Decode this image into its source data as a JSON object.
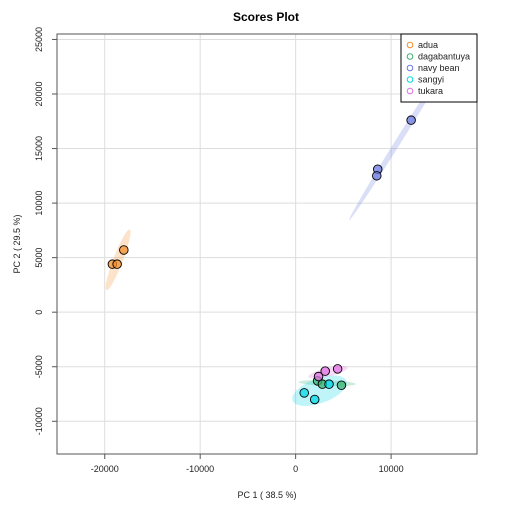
{
  "chart_data": {
    "type": "scatter",
    "title": "Scores Plot",
    "xlabel": "PC 1 ( 38.5 %)",
    "ylabel": "PC 2 ( 29.5 %)",
    "xlim": [
      -25000,
      19000
    ],
    "ylim": [
      -13000,
      25500
    ],
    "xticks": [
      -20000,
      -10000,
      0,
      10000
    ],
    "xtick_labels": [
      "-20000",
      "-10000",
      "0",
      "10000"
    ],
    "yticks": [
      -10000,
      -5000,
      0,
      5000,
      10000,
      15000,
      20000,
      25000
    ],
    "ytick_labels": [
      "-10000",
      "-5000",
      "0",
      "5000",
      "10000",
      "15000",
      "20000",
      "25000"
    ],
    "grid": true,
    "legend_position": "top-right",
    "series": [
      {
        "name": "adua",
        "color": "#f28e2b",
        "points": [
          [
            -19200,
            4400
          ],
          [
            -18700,
            4400
          ],
          [
            -18000,
            5700
          ]
        ],
        "ellipse": {
          "cx": -18600,
          "cy": 4800,
          "rx": 3400,
          "ry": 500,
          "angle_deg": 69
        }
      },
      {
        "name": "dagabantuya",
        "color": "#3cb371",
        "points": [
          [
            2300,
            -6300
          ],
          [
            2800,
            -6600
          ],
          [
            4800,
            -6700
          ]
        ],
        "ellipse": {
          "cx": 3300,
          "cy": -6500,
          "rx": 3000,
          "ry": 300,
          "angle_deg": -2
        }
      },
      {
        "name": "navy bean",
        "color": "#6a7ae0",
        "points": [
          [
            8600,
            13100
          ],
          [
            8500,
            12500
          ],
          [
            12100,
            17600
          ]
        ],
        "ellipse": {
          "cx": 11000,
          "cy": 16000,
          "rx": 10200,
          "ry": 300,
          "angle_deg": 58
        }
      },
      {
        "name": "sangyi",
        "color": "#00d8e8",
        "points": [
          [
            900,
            -7400
          ],
          [
            2000,
            -8000
          ],
          [
            3500,
            -6600
          ]
        ],
        "ellipse": {
          "cx": 2500,
          "cy": -7200,
          "rx": 3000,
          "ry": 1300,
          "angle_deg": 20
        }
      },
      {
        "name": "tukara",
        "color": "#e070e0",
        "points": [
          [
            2400,
            -5900
          ],
          [
            3100,
            -5400
          ],
          [
            4400,
            -5200
          ]
        ],
        "ellipse": {
          "cx": 3400,
          "cy": -5500,
          "rx": 2100,
          "ry": 450,
          "angle_deg": 13
        }
      }
    ]
  }
}
